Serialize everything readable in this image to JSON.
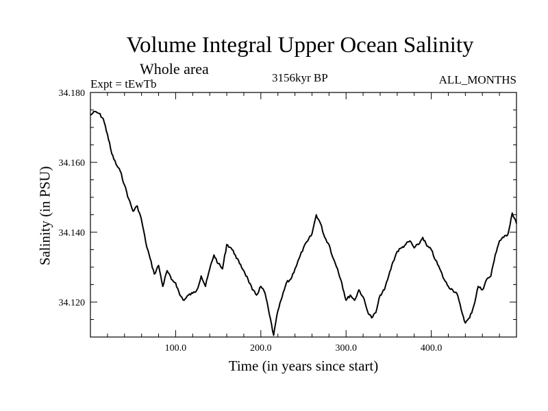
{
  "chart_data": {
    "type": "line",
    "title": "Volume Integral Upper Ocean Salinity",
    "subtitle": "Whole area",
    "experiment_label": "Expt = tEwTb",
    "date_label": "3156kyr BP",
    "period_label": "ALL_MONTHS",
    "xlabel": "Time (in years since start)",
    "ylabel": "Salinity (in PSU)",
    "xlim": [
      0,
      500
    ],
    "ylim": [
      34.11,
      34.18
    ],
    "x_ticks": [
      100,
      200,
      300,
      400
    ],
    "x_tick_labels": [
      "100.0",
      "200.0",
      "300.0",
      "400.0"
    ],
    "y_ticks": [
      34.12,
      34.14,
      34.16,
      34.18
    ],
    "y_tick_labels": [
      "34.120",
      "34.140",
      "34.160",
      "34.180"
    ],
    "series": [
      {
        "name": "salinity",
        "x": [
          0,
          5,
          10,
          15,
          20,
          25,
          30,
          35,
          40,
          45,
          50,
          55,
          60,
          65,
          70,
          75,
          80,
          85,
          90,
          95,
          100,
          105,
          110,
          115,
          120,
          125,
          130,
          135,
          140,
          145,
          150,
          155,
          160,
          165,
          170,
          175,
          180,
          185,
          190,
          195,
          200,
          205,
          210,
          215,
          220,
          225,
          230,
          235,
          240,
          245,
          250,
          255,
          260,
          265,
          270,
          275,
          280,
          285,
          290,
          295,
          300,
          305,
          310,
          315,
          320,
          325,
          330,
          335,
          340,
          345,
          350,
          355,
          360,
          365,
          370,
          375,
          380,
          385,
          390,
          395,
          400,
          405,
          410,
          415,
          420,
          425,
          430,
          435,
          440,
          445,
          450,
          455,
          460,
          465,
          470,
          475,
          480,
          485,
          490,
          495,
          500
        ],
        "values": [
          34.1735,
          34.1745,
          34.174,
          34.1725,
          34.168,
          34.1625,
          34.1595,
          34.1575,
          34.1535,
          34.1495,
          34.146,
          34.1475,
          34.1435,
          34.137,
          34.1325,
          34.128,
          34.1305,
          34.1245,
          34.129,
          34.1265,
          34.1255,
          34.122,
          34.1205,
          34.122,
          34.1225,
          34.1235,
          34.1275,
          34.1245,
          34.1295,
          34.1335,
          34.131,
          34.1295,
          34.1365,
          34.1355,
          34.1335,
          34.131,
          34.129,
          34.1265,
          34.1235,
          34.122,
          34.1245,
          34.1225,
          34.1165,
          34.1105,
          34.1175,
          34.1215,
          34.1255,
          34.1265,
          34.1295,
          34.1325,
          34.1355,
          34.1375,
          34.1395,
          34.145,
          34.1425,
          34.1385,
          34.1365,
          34.1325,
          34.1295,
          34.1255,
          34.1205,
          34.122,
          34.1205,
          34.1235,
          34.1215,
          34.1175,
          34.1155,
          34.117,
          34.122,
          34.1235,
          34.1275,
          34.1315,
          34.1345,
          34.1355,
          34.1365,
          34.1375,
          34.1355,
          34.1365,
          34.1385,
          34.136,
          34.135,
          34.132,
          34.1295,
          34.1265,
          34.1245,
          34.1235,
          34.1225,
          34.118,
          34.114,
          34.1155,
          34.119,
          34.1245,
          34.1235,
          34.1265,
          34.1275,
          34.1335,
          34.1375,
          34.1385,
          34.1395,
          34.1455,
          34.1425
        ]
      }
    ],
    "line_color": "#000000",
    "grid": false
  }
}
